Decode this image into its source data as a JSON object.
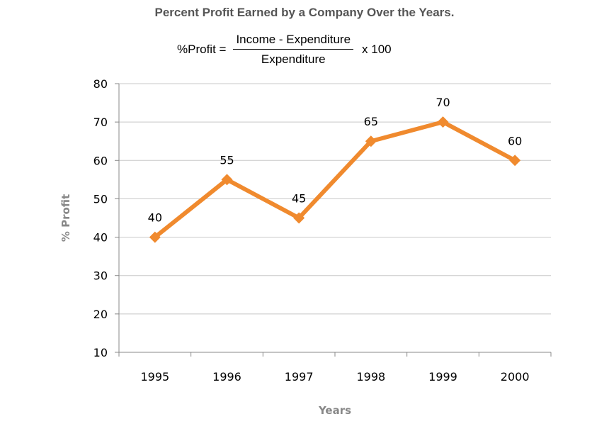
{
  "chart_data": {
    "type": "line",
    "title": "Percent Profit Earned by a Company Over the Years.",
    "formula": {
      "lhs": "%Profit =",
      "numerator": "Income - Expenditure",
      "denominator": "Expenditure",
      "rhs": "x 100"
    },
    "categories": [
      "1995",
      "1996",
      "1997",
      "1998",
      "1999",
      "2000"
    ],
    "series": [
      {
        "values": [
          40,
          55,
          45,
          65,
          70,
          60
        ],
        "color": "#f08a2e"
      }
    ],
    "data_labels": [
      "40",
      "55",
      "45",
      "65",
      "70",
      "60"
    ],
    "xlabel": "Years",
    "ylabel": "% Profit",
    "ylim": [
      10,
      80
    ],
    "yticks": [
      10,
      20,
      30,
      40,
      50,
      60,
      70,
      80
    ],
    "grid": true,
    "marker": "diamond"
  }
}
